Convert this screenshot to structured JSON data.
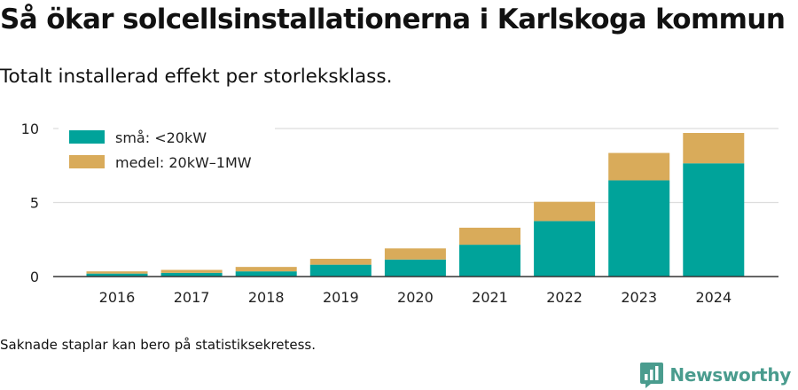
{
  "title": "Så ökar solcellsinstallationerna i Karlskoga kommun",
  "subtitle": "Totalt installerad effekt per storleksklass.",
  "footnote": "Saknade staplar kan bero på statistiksekretess.",
  "brand": {
    "name": "Newsworthy",
    "icon": "newsworthy-logo-icon",
    "color": "#4a9c8e"
  },
  "chart_data": {
    "type": "bar",
    "stacked": true,
    "categories": [
      "2016",
      "2017",
      "2018",
      "2019",
      "2020",
      "2021",
      "2022",
      "2023",
      "2024"
    ],
    "series": [
      {
        "name": "små: <20kW",
        "color": "#00a39a",
        "values": [
          0.2,
          0.25,
          0.35,
          0.8,
          1.15,
          2.15,
          3.75,
          6.5,
          7.65
        ]
      },
      {
        "name": "medel: 20kW–1MW",
        "color": "#d9ab5a",
        "values": [
          0.15,
          0.2,
          0.3,
          0.4,
          0.75,
          1.15,
          1.3,
          1.85,
          2.05
        ]
      }
    ],
    "yticks": [
      0,
      5,
      10
    ],
    "ylim": [
      0,
      10
    ],
    "grid": true,
    "legend": "top-left"
  }
}
